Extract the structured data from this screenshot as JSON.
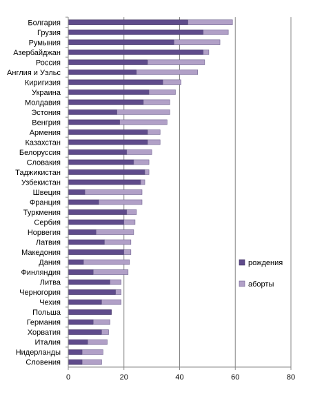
{
  "chart_data": {
    "type": "bar",
    "orientation": "horizontal",
    "stacked": true,
    "categories": [
      "Болгария",
      "Грузия",
      "Румыния",
      "Азербайджан",
      "Россия",
      "Англия и Уэльс",
      "Киригизия",
      "Украина",
      "Молдавия",
      "Эстония",
      "Венгрия",
      "Армения",
      "Казахстан",
      "Белоруссия",
      "Словакия",
      "Таджикистан",
      "Узбекистан",
      "Швеция",
      "Франция",
      "Туркмения",
      "Сербия",
      "Норвегия",
      "Латвия",
      "Македония",
      "Дания",
      "Финляндия",
      "Литва",
      "Черногория",
      "Чехия",
      "Польша",
      "Германия",
      "Хорватия",
      "Италия",
      "Нидерланды",
      "Словения"
    ],
    "series": [
      {
        "name": "рождения",
        "color": "#5f4b8b",
        "values": [
          43,
          48.5,
          38,
          48.5,
          28.5,
          24.5,
          34,
          29,
          27,
          17.5,
          18.5,
          28.5,
          28.5,
          21,
          23.5,
          27.5,
          26,
          6,
          11,
          21,
          20,
          10,
          13,
          20,
          5.5,
          9,
          15,
          17,
          12,
          15.5,
          9,
          12,
          7,
          5,
          5
        ]
      },
      {
        "name": "аборты",
        "color": "#b1a0c7",
        "values": [
          16,
          9,
          16.5,
          2,
          20.5,
          22,
          6.5,
          9.5,
          9.5,
          19,
          17,
          4.5,
          4.5,
          9,
          5.5,
          1.5,
          1.5,
          20.5,
          15.5,
          3.5,
          4,
          13.5,
          9.5,
          2.5,
          16.5,
          12.5,
          4,
          2,
          7,
          0,
          6,
          2.5,
          7,
          7.5,
          7
        ]
      }
    ],
    "xlim": [
      0,
      80
    ],
    "xticks": [
      "0",
      "20",
      "40",
      "60",
      "80"
    ],
    "grid": "vertical",
    "legend_position": "right"
  }
}
